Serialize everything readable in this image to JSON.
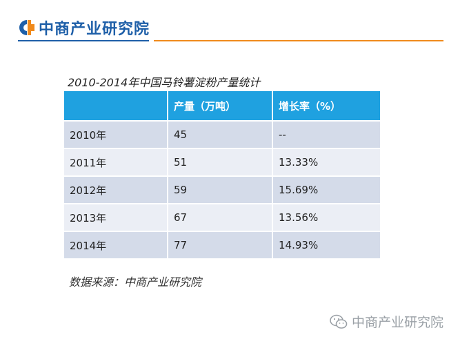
{
  "header": {
    "logo_text": "中商产业研究院",
    "brand_blue": "#1e5fa8",
    "accent_orange": "#f08a1c"
  },
  "table": {
    "title": "2010-2014年中国马铃薯淀粉产量统计",
    "header_color": "#1fa1e0",
    "columns": [
      "",
      "产量（万吨）",
      "增长率（%）"
    ],
    "rows": [
      [
        "2010年",
        "45",
        "--"
      ],
      [
        "2011年",
        "51",
        "13.33%"
      ],
      [
        "2012年",
        "59",
        "15.69%"
      ],
      [
        "2013年",
        "67",
        "13.56%"
      ],
      [
        "2014年",
        "77",
        "14.93%"
      ]
    ]
  },
  "source": "数据来源：中商产业研究院",
  "watermark": {
    "icon": "wechat-icon",
    "text": "中商产业研究院"
  }
}
